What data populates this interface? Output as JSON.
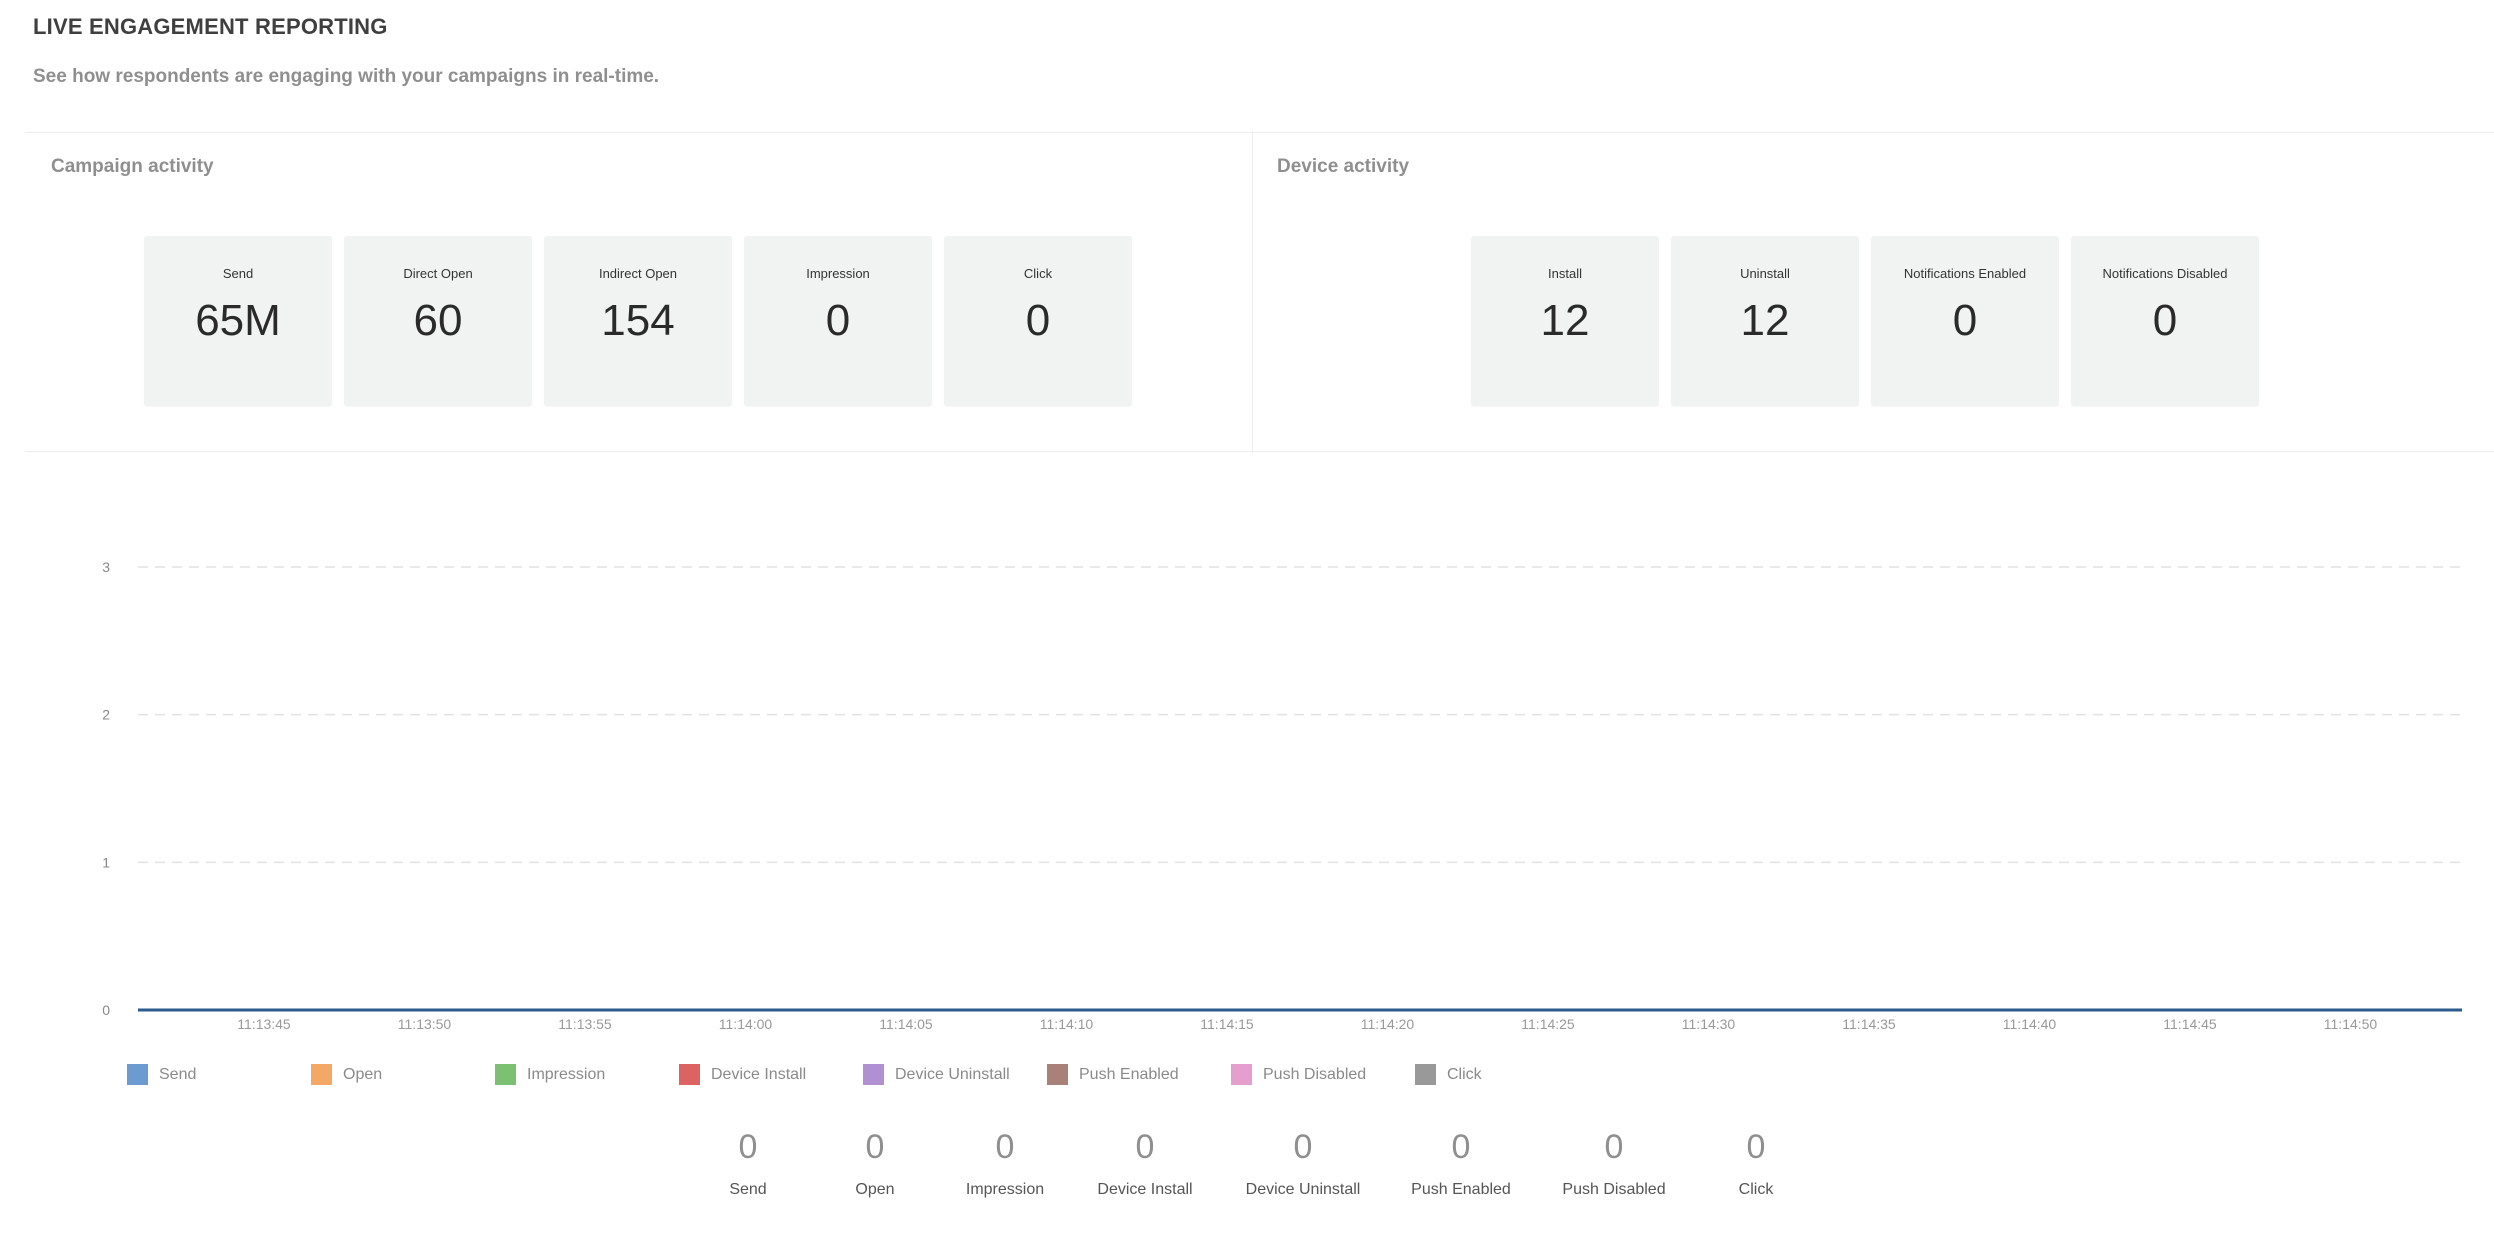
{
  "header": {
    "title": "LIVE ENGAGEMENT REPORTING",
    "subtitle": "See how respondents are engaging with your campaigns in real-time."
  },
  "campaign_activity": {
    "title": "Campaign activity",
    "cards": [
      {
        "label": "Send",
        "value": "65M"
      },
      {
        "label": "Direct Open",
        "value": "60"
      },
      {
        "label": "Indirect Open",
        "value": "154"
      },
      {
        "label": "Impression",
        "value": "0"
      },
      {
        "label": "Click",
        "value": "0"
      }
    ]
  },
  "device_activity": {
    "title": "Device activity",
    "cards": [
      {
        "label": "Install",
        "value": "12"
      },
      {
        "label": "Uninstall",
        "value": "12"
      },
      {
        "label": "Notifications Enabled",
        "value": "0"
      },
      {
        "label": "Notifications Disabled",
        "value": "0"
      }
    ]
  },
  "chart_data": {
    "type": "line",
    "title": "",
    "xlabel": "",
    "ylabel": "",
    "x": [
      "11:13:45",
      "11:13:50",
      "11:13:55",
      "11:14:00",
      "11:14:05",
      "11:14:10",
      "11:14:15",
      "11:14:20",
      "11:14:25",
      "11:14:30",
      "11:14:35",
      "11:14:40",
      "11:14:45",
      "11:14:50"
    ],
    "y_ticks": [
      "0",
      "1",
      "2",
      "3"
    ],
    "ylim": [
      0,
      3
    ],
    "grid": true,
    "legend_position": "bottom",
    "series": [
      {
        "name": "Send",
        "color": "#6b9bd1",
        "values": [
          0,
          0,
          0,
          0,
          0,
          0,
          0,
          0,
          0,
          0,
          0,
          0,
          0,
          0
        ]
      },
      {
        "name": "Open",
        "color": "#f4a866",
        "values": [
          0,
          0,
          0,
          0,
          0,
          0,
          0,
          0,
          0,
          0,
          0,
          0,
          0,
          0
        ]
      },
      {
        "name": "Impression",
        "color": "#7cc073",
        "values": [
          0,
          0,
          0,
          0,
          0,
          0,
          0,
          0,
          0,
          0,
          0,
          0,
          0,
          0
        ]
      },
      {
        "name": "Device Install",
        "color": "#dd6363",
        "values": [
          0,
          0,
          0,
          0,
          0,
          0,
          0,
          0,
          0,
          0,
          0,
          0,
          0,
          0
        ]
      },
      {
        "name": "Device Uninstall",
        "color": "#b08fd3",
        "values": [
          0,
          0,
          0,
          0,
          0,
          0,
          0,
          0,
          0,
          0,
          0,
          0,
          0,
          0
        ]
      },
      {
        "name": "Push Enabled",
        "color": "#a88178",
        "values": [
          0,
          0,
          0,
          0,
          0,
          0,
          0,
          0,
          0,
          0,
          0,
          0,
          0,
          0
        ]
      },
      {
        "name": "Push Disabled",
        "color": "#e49fcf",
        "values": [
          0,
          0,
          0,
          0,
          0,
          0,
          0,
          0,
          0,
          0,
          0,
          0,
          0,
          0
        ]
      },
      {
        "name": "Click",
        "color": "#999999",
        "values": [
          0,
          0,
          0,
          0,
          0,
          0,
          0,
          0,
          0,
          0,
          0,
          0,
          0,
          0
        ]
      }
    ]
  },
  "totals": [
    {
      "label": "Send",
      "value": "0"
    },
    {
      "label": "Open",
      "value": "0"
    },
    {
      "label": "Impression",
      "value": "0"
    },
    {
      "label": "Device Install",
      "value": "0"
    },
    {
      "label": "Device Uninstall",
      "value": "0"
    },
    {
      "label": "Push Enabled",
      "value": "0"
    },
    {
      "label": "Push Disabled",
      "value": "0"
    },
    {
      "label": "Click",
      "value": "0"
    }
  ]
}
